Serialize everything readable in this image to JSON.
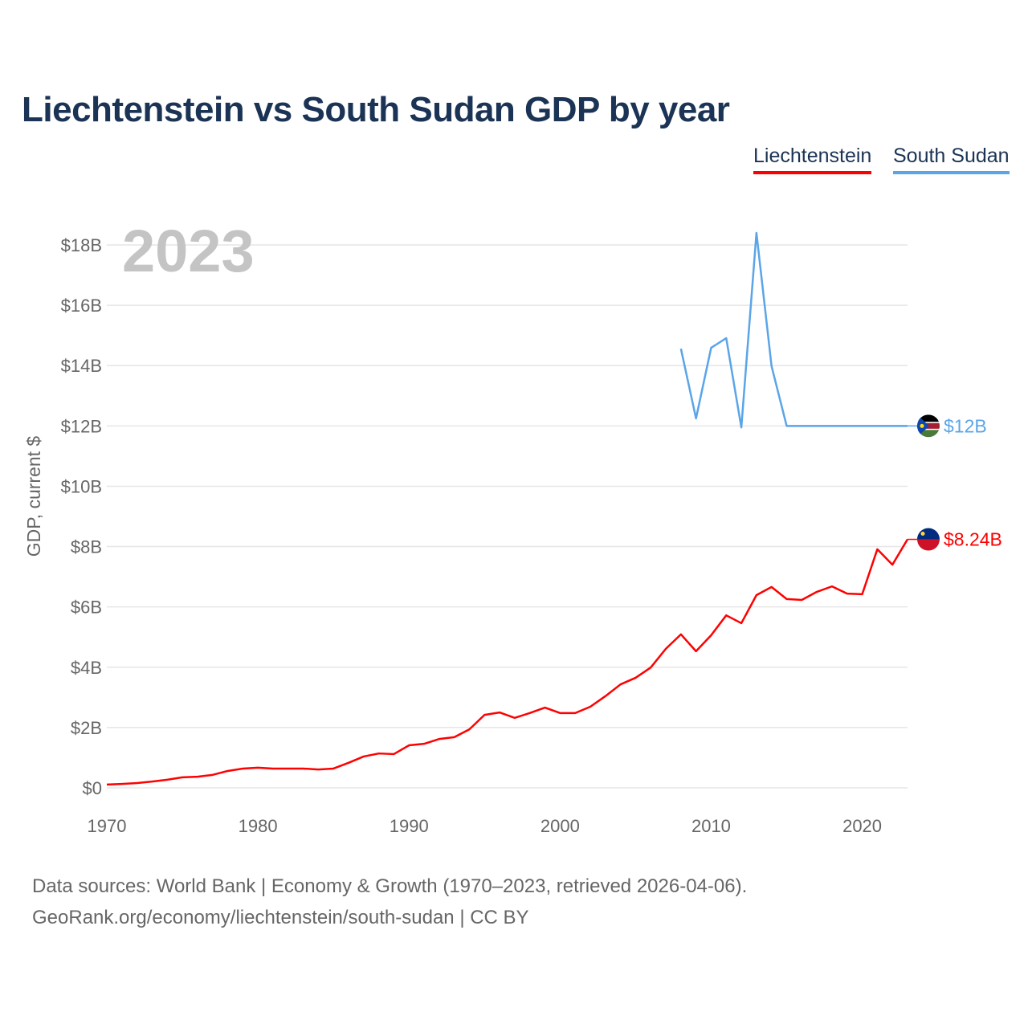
{
  "chart_data": {
    "type": "line",
    "title": "Liechtenstein vs South Sudan GDP by year",
    "xlabel": "",
    "ylabel": "GDP, current $",
    "year_overlay": "2023",
    "xlim": [
      1970,
      2023
    ],
    "ylim": [
      0,
      18
    ],
    "grid": true,
    "legend_placement": "top-right",
    "x_ticks": [
      {
        "value": 1970,
        "label": "1970"
      },
      {
        "value": 1980,
        "label": "1980"
      },
      {
        "value": 1990,
        "label": "1990"
      },
      {
        "value": 2000,
        "label": "2000"
      },
      {
        "value": 2010,
        "label": "2010"
      },
      {
        "value": 2020,
        "label": "2020"
      }
    ],
    "y_ticks": [
      {
        "value": 0,
        "label": "$0"
      },
      {
        "value": 2,
        "label": "$2B"
      },
      {
        "value": 4,
        "label": "$4B"
      },
      {
        "value": 6,
        "label": "$6B"
      },
      {
        "value": 8,
        "label": "$8B"
      },
      {
        "value": 10,
        "label": "$10B"
      },
      {
        "value": 12,
        "label": "$12B"
      },
      {
        "value": 14,
        "label": "$14B"
      },
      {
        "value": 16,
        "label": "$16B"
      },
      {
        "value": 18,
        "label": "$18B"
      }
    ],
    "series": [
      {
        "name": "Liechtenstein",
        "color": "#ff0000",
        "end_label": "$8.24B",
        "x": [
          1970,
          1971,
          1972,
          1973,
          1974,
          1975,
          1976,
          1977,
          1978,
          1979,
          1980,
          1981,
          1982,
          1983,
          1984,
          1985,
          1986,
          1987,
          1988,
          1989,
          1990,
          1991,
          1992,
          1993,
          1994,
          1995,
          1996,
          1997,
          1998,
          1999,
          2000,
          2001,
          2002,
          2003,
          2004,
          2005,
          2006,
          2007,
          2008,
          2009,
          2010,
          2011,
          2012,
          2013,
          2014,
          2015,
          2016,
          2017,
          2018,
          2019,
          2020,
          2021,
          2022,
          2023
        ],
        "values": [
          0.11,
          0.13,
          0.16,
          0.21,
          0.27,
          0.35,
          0.37,
          0.43,
          0.56,
          0.64,
          0.67,
          0.64,
          0.64,
          0.64,
          0.61,
          0.64,
          0.83,
          1.04,
          1.14,
          1.12,
          1.41,
          1.46,
          1.62,
          1.68,
          1.94,
          2.42,
          2.5,
          2.32,
          2.48,
          2.66,
          2.48,
          2.48,
          2.69,
          3.04,
          3.43,
          3.65,
          3.99,
          4.61,
          5.09,
          4.53,
          5.06,
          5.72,
          5.46,
          6.39,
          6.66,
          6.26,
          6.23,
          6.5,
          6.68,
          6.44,
          6.42,
          7.91,
          7.4,
          8.24
        ]
      },
      {
        "name": "South Sudan",
        "color": "#5aa5e8",
        "end_label": "$12B",
        "x": [
          2008,
          2009,
          2010,
          2011,
          2012,
          2013,
          2014,
          2015,
          2016,
          2017,
          2018,
          2019,
          2020,
          2021,
          2022,
          2023
        ],
        "values": [
          14.56,
          12.25,
          14.59,
          14.91,
          11.95,
          18.4,
          13.98,
          12.0,
          12.0,
          12.0,
          12.0,
          12.0,
          12.0,
          12.0,
          12.0,
          12.0
        ]
      }
    ],
    "footer": {
      "line1": "Data sources: World Bank | Economy & Growth (1970–2023, retrieved 2026-04-06).",
      "line2": "GeoRank.org/economy/liechtenstein/south-sudan | CC BY"
    }
  }
}
